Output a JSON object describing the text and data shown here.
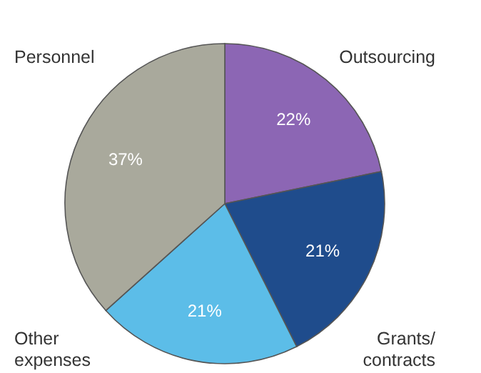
{
  "chart_data": {
    "type": "pie",
    "categories": [
      "Outsourcing",
      "Grants/contracts",
      "Other expenses",
      "Personnel"
    ],
    "values": [
      22,
      21,
      21,
      37
    ],
    "colors": [
      "#8c66b4",
      "#1f4c8c",
      "#5cbde8",
      "#a9a99c"
    ],
    "value_labels": [
      "22%",
      "21%",
      "21%",
      "37%"
    ]
  }
}
